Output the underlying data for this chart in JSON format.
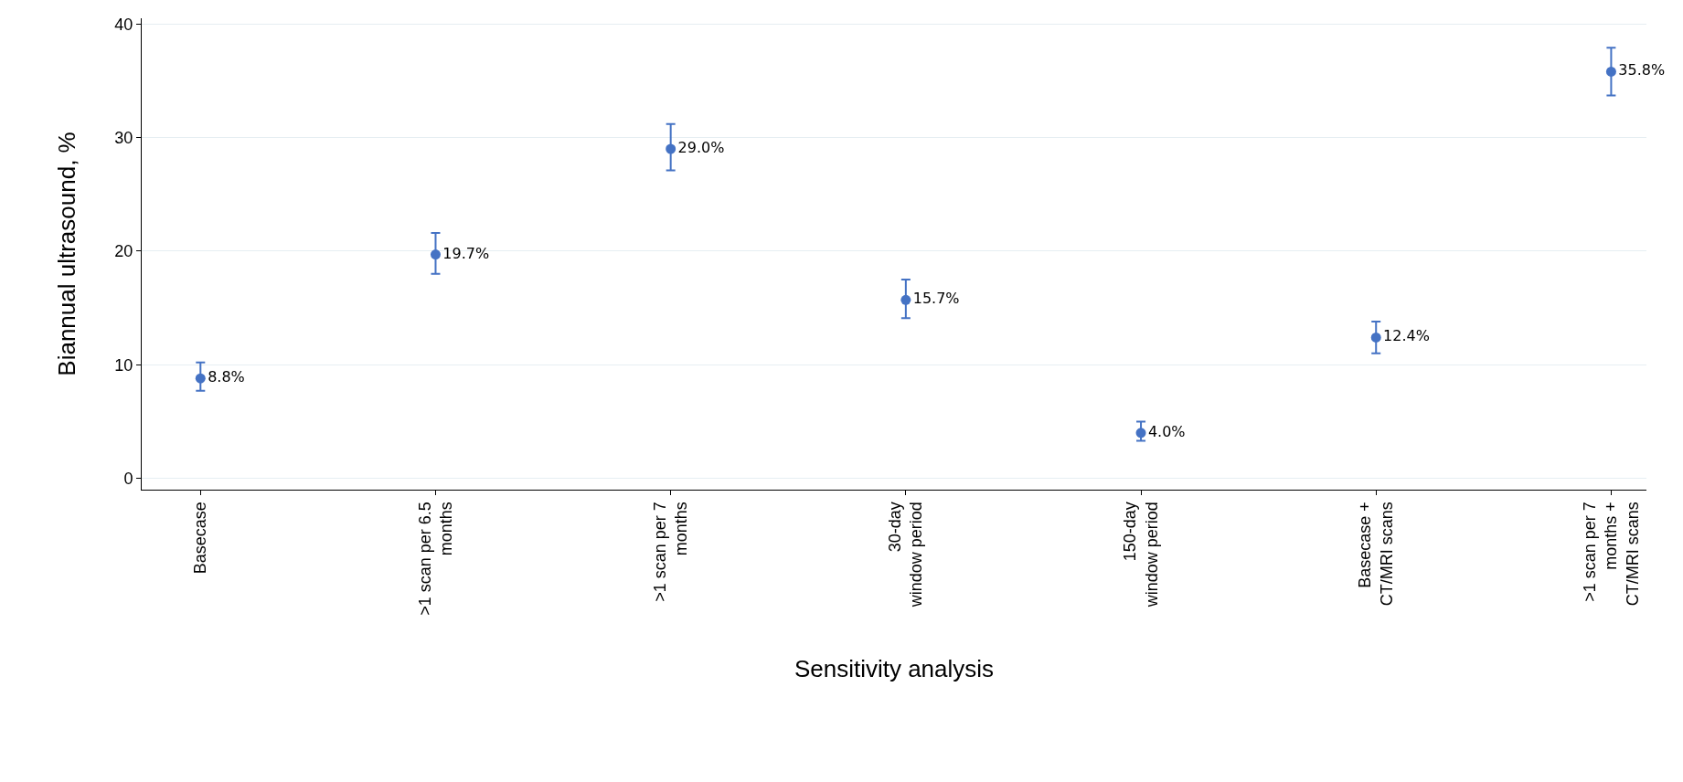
{
  "chart_data": {
    "type": "scatter",
    "categories": [
      "Basecase",
      ">1 scan per 6.5\nmonths",
      ">1 scan per 7\nmonths",
      "30-day\nwindow period",
      "150-day\nwindow period",
      "Basecase +\nCT/MRI scans",
      ">1 scan per 7\nmonths +\nCT/MRI scans"
    ],
    "values": [
      8.8,
      19.7,
      29.0,
      15.7,
      4.0,
      12.4,
      35.8
    ],
    "errors": [
      [
        7.7,
        10.2
      ],
      [
        18.0,
        21.6
      ],
      [
        27.1,
        31.2
      ],
      [
        14.1,
        17.5
      ],
      [
        3.3,
        5.0
      ],
      [
        11.0,
        13.8
      ],
      [
        33.7,
        37.9
      ]
    ],
    "value_labels": [
      "8.8%",
      "19.7%",
      "29.0%",
      "15.7%",
      "4.0%",
      "12.4%",
      "35.8%"
    ],
    "color": "#4472c4",
    "xlabel": "Sensitivity analysis",
    "ylabel": "Biannual ultrasound, %",
    "ylim": [
      -1,
      40.5
    ],
    "yticks": [
      0,
      10,
      20,
      30,
      40
    ],
    "grid": "y",
    "marker": "circle"
  }
}
